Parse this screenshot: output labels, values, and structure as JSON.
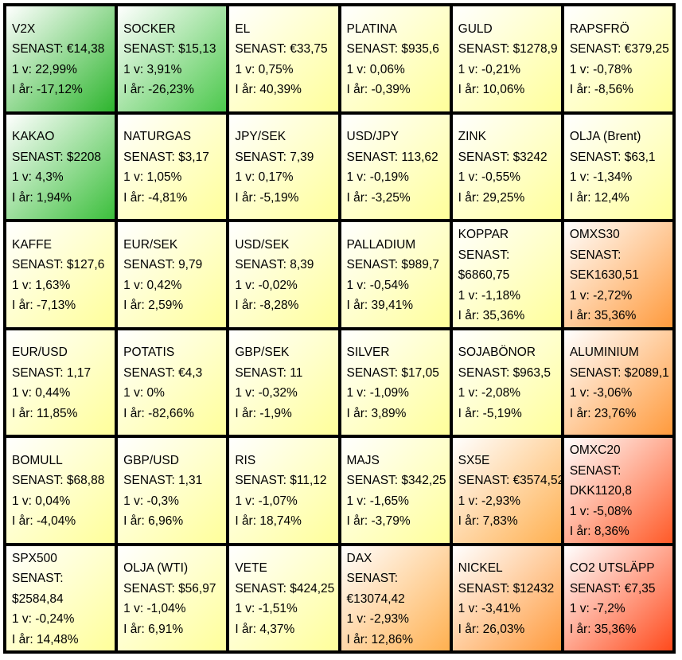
{
  "rows": [
    [
      {
        "name": "V2X",
        "senast": "SENAST: €14,38",
        "v": "1 v: 22,99%",
        "ar": "I år: -17,12%",
        "bg": [
          "#ffffff",
          "#2db52d"
        ]
      },
      {
        "name": "SOCKER",
        "senast": "SENAST: $15,13",
        "v": "1 v: 3,91%",
        "ar": "I år: -26,23%",
        "bg": [
          "#ffffff",
          "#4cc84c"
        ]
      },
      {
        "name": "EL",
        "senast": "SENAST: €33,75",
        "v": "1 v: 0,75%",
        "ar": "I år: 40,39%",
        "bg": [
          "#ffffff",
          "#ffff9a"
        ]
      },
      {
        "name": "PLATINA",
        "senast": "SENAST: $935,6",
        "v": "1 v: 0,06%",
        "ar": "I år: -0,39%",
        "bg": [
          "#ffffff",
          "#ffff9a"
        ]
      },
      {
        "name": "GULD",
        "senast": "SENAST: $1278,9",
        "v": "1 v: -0,21%",
        "ar": "I år: 10,06%",
        "bg": [
          "#ffffff",
          "#ffff9a"
        ]
      },
      {
        "name": "RAPSFRÖ",
        "senast": "SENAST: €379,25",
        "v": "1 v: -0,78%",
        "ar": "I år: -8,56%",
        "bg": [
          "#ffffff",
          "#ffff9a"
        ]
      }
    ],
    [
      {
        "name": "KAKAO",
        "senast": "SENAST: $2208",
        "v": "1 v: 4,3%",
        "ar": "I år: 1,94%",
        "bg": [
          "#ffffff",
          "#3cbf3c"
        ]
      },
      {
        "name": "NATURGAS",
        "senast": "SENAST: $3,17",
        "v": "1 v: 1,05%",
        "ar": "I år: -4,81%",
        "bg": [
          "#ffffff",
          "#ffff9a"
        ]
      },
      {
        "name": "JPY/SEK",
        "senast": "SENAST: 7,39",
        "v": "1 v: 0,17%",
        "ar": "I år: -5,19%",
        "bg": [
          "#ffffff",
          "#ffff9a"
        ]
      },
      {
        "name": "USD/JPY",
        "senast": "SENAST: 113,62",
        "v": "1 v: -0,19%",
        "ar": "I år: -3,25%",
        "bg": [
          "#ffffff",
          "#ffff9a"
        ]
      },
      {
        "name": "ZINK",
        "senast": "SENAST: $3242",
        "v": "1 v: -0,55%",
        "ar": "I år: 29,25%",
        "bg": [
          "#ffffff",
          "#ffff9a"
        ]
      },
      {
        "name": "OLJA (Brent)",
        "senast": "SENAST: $63,1",
        "v": "1 v: -1,34%",
        "ar": "I år: 12,4%",
        "bg": [
          "#ffffff",
          "#ffff9a"
        ]
      }
    ],
    [
      {
        "name": "KAFFE",
        "senast": "SENAST: $127,6",
        "v": "1 v: 1,63%",
        "ar": "I år: -7,13%",
        "bg": [
          "#ffffff",
          "#ffff9a"
        ]
      },
      {
        "name": "EUR/SEK",
        "senast": "SENAST: 9,79",
        "v": "1 v: 0,42%",
        "ar": "I år: 2,59%",
        "bg": [
          "#ffffff",
          "#ffff9a"
        ]
      },
      {
        "name": "USD/SEK",
        "senast": "SENAST: 8,39",
        "v": "1 v: -0,02%",
        "ar": "I år: -8,28%",
        "bg": [
          "#ffffff",
          "#ffff9a"
        ]
      },
      {
        "name": "PALLADIUM",
        "senast": "SENAST: $989,7",
        "v": "1 v: -0,54%",
        "ar": "I år: 39,41%",
        "bg": [
          "#ffffff",
          "#ffff9a"
        ]
      },
      {
        "name": "KOPPAR",
        "senast": "SENAST:",
        "senast2": "$6860,75",
        "v": "1 v: -1,18%",
        "ar": "I år: 35,36%",
        "bg": [
          "#ffffff",
          "#ffff9a"
        ]
      },
      {
        "name": "OMXS30",
        "senast": "SENAST:",
        "senast2": "SEK1630,51",
        "v": "1 v: -2,72%",
        "ar": "I år: 35,36%",
        "bg": [
          "#ffffff",
          "#ff9a3c"
        ]
      }
    ],
    [
      {
        "name": "EUR/USD",
        "senast": "SENAST: 1,17",
        "v": "1 v: 0,44%",
        "ar": "I år: 11,85%",
        "bg": [
          "#ffffff",
          "#ffff9a"
        ]
      },
      {
        "name": "POTATIS",
        "senast": "SENAST: €4,3",
        "v": "1 v: 0%",
        "ar": "I år: -82,66%",
        "bg": [
          "#ffffff",
          "#ffff9a"
        ]
      },
      {
        "name": "GBP/SEK",
        "senast": "SENAST: 11",
        "v": "1 v: -0,32%",
        "ar": "I år: -1,9%",
        "bg": [
          "#ffffff",
          "#ffff9a"
        ]
      },
      {
        "name": "SILVER",
        "senast": "SENAST: $17,05",
        "v": "1 v: -1,09%",
        "ar": "I år: 3,89%",
        "bg": [
          "#ffffff",
          "#ffff9a"
        ]
      },
      {
        "name": "SOJABÖNOR",
        "senast": "SENAST: $963,5",
        "v": "1 v: -2,08%",
        "ar": "I år: -5,19%",
        "bg": [
          "#ffffff",
          "#ffff9a"
        ]
      },
      {
        "name": "ALUMINIUM",
        "senast": "SENAST: $2089,1",
        "v": "1 v: -3,06%",
        "ar": "I år: 23,76%",
        "bg": [
          "#ffffff",
          "#ff9a3c"
        ]
      }
    ],
    [
      {
        "name": "BOMULL",
        "senast": "SENAST: $68,88",
        "v": "1 v: 0,04%",
        "ar": "I år: -4,04%",
        "bg": [
          "#ffffff",
          "#ffff9a"
        ]
      },
      {
        "name": "GBP/USD",
        "senast": "SENAST: 1,31",
        "v": "1 v: -0,3%",
        "ar": "I år: 6,96%",
        "bg": [
          "#ffffff",
          "#ffff9a"
        ]
      },
      {
        "name": "RIS",
        "senast": "SENAST: $11,12",
        "v": "1 v: -1,07%",
        "ar": "I år: 18,74%",
        "bg": [
          "#ffffff",
          "#ffff9a"
        ]
      },
      {
        "name": "MAJS",
        "senast": "SENAST: $342,25",
        "v": "1 v: -1,65%",
        "ar": "I år: -3,79%",
        "bg": [
          "#ffffff",
          "#ffff9a"
        ]
      },
      {
        "name": "SX5E",
        "senast": "SENAST: €3574,52",
        "v": "1 v: -2,93%",
        "ar": "I år: 7,83%",
        "bg": [
          "#ffffff",
          "#ffb050"
        ]
      },
      {
        "name": "OMXC20",
        "senast": "SENAST:",
        "senast2": "DKK1120,8",
        "v": "1 v: -5,08%",
        "ar": "I år: 8,36%",
        "bg": [
          "#ffffff",
          "#ff5a28"
        ]
      }
    ],
    [
      {
        "name": "SPX500",
        "senast": "SENAST:",
        "senast2": "$2584,84",
        "v": "1 v: -0,24%",
        "ar": "I år: 14,48%",
        "bg": [
          "#ffffff",
          "#ffff9a"
        ]
      },
      {
        "name": "OLJA (WTI)",
        "senast": "SENAST: $56,97",
        "v": "1 v: -1,04%",
        "ar": "I år: 6,91%",
        "bg": [
          "#ffffff",
          "#ffff9a"
        ]
      },
      {
        "name": "VETE",
        "senast": "SENAST: $424,25",
        "v": "1 v: -1,51%",
        "ar": "I år: 4,37%",
        "bg": [
          "#ffffff",
          "#ffff9a"
        ]
      },
      {
        "name": "DAX",
        "senast": "SENAST:",
        "senast2": "€13074,42",
        "v": "1 v: -2,93%",
        "ar": "I år: 12,86%",
        "bg": [
          "#ffffff",
          "#ffb050"
        ]
      },
      {
        "name": "NICKEL",
        "senast": "SENAST: $12432",
        "v": "1 v: -3,41%",
        "ar": "I år: 26,03%",
        "bg": [
          "#ffffff",
          "#ff9a3c"
        ]
      },
      {
        "name": "CO2 UTSLÄPP",
        "senast": "SENAST: €7,35",
        "v": "1 v: -7,2%",
        "ar": "I år: 35,36%",
        "bg": [
          "#ffffff",
          "#ff4a1c"
        ]
      }
    ]
  ]
}
